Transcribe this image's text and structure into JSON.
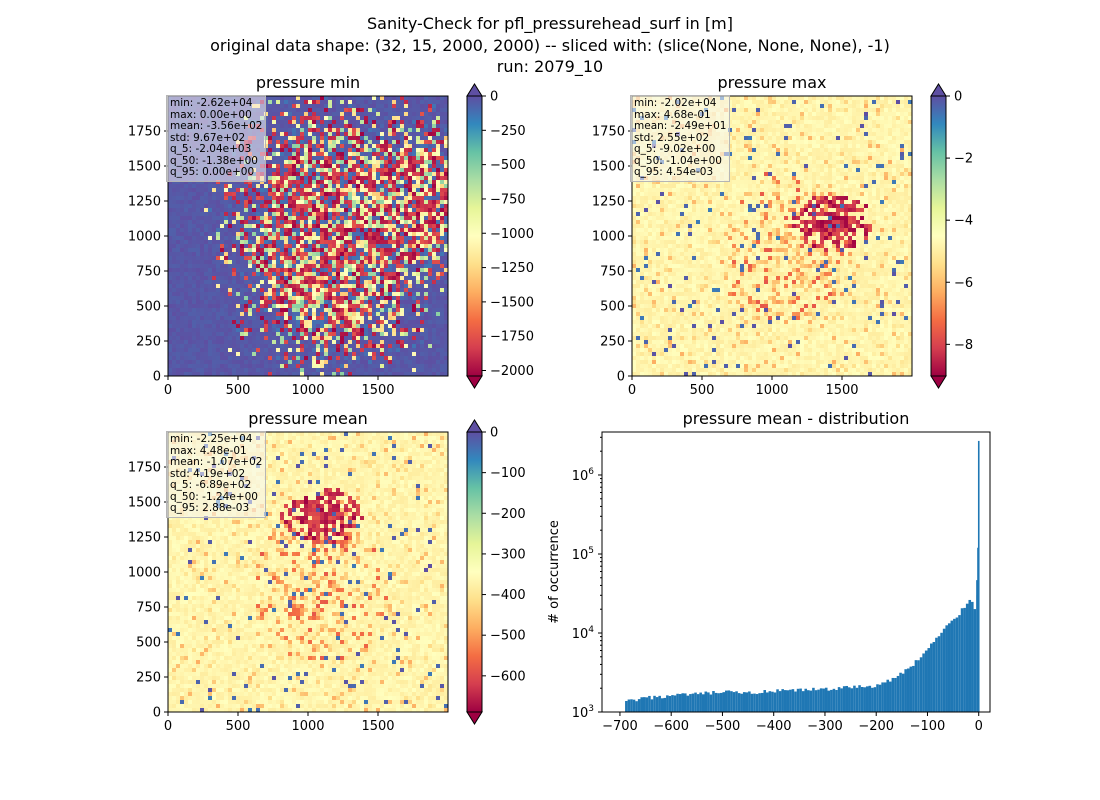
{
  "suptitle": {
    "line1": "Sanity-Check for pfl_pressurehead_surf in [m]",
    "line2": "original data shape: (32, 15, 2000, 2000) -- sliced with: (slice(None, None, None), -1)",
    "line3": "run: 2079_10"
  },
  "chart_data": [
    {
      "type": "heatmap",
      "title": "pressure min",
      "colormap": "Spectral",
      "x_ticks": [
        0,
        500,
        1000,
        1500
      ],
      "y_ticks": [
        0,
        250,
        500,
        750,
        1000,
        1250,
        1500,
        1750
      ],
      "xlim": [
        0,
        2000
      ],
      "ylim": [
        0,
        2000
      ],
      "colorbar_ticks": [
        0,
        -250,
        -500,
        -750,
        -1000,
        -1250,
        -1500,
        -1750,
        -2000
      ],
      "colorbar_range": [
        -2040,
        0
      ],
      "colorbar_extend": "both",
      "stats": [
        "min: -2.62e+04",
        "max: 0.00e+00",
        "mean: -3.56e+02",
        "std: 9.67e+02",
        "q_5: -2.04e+03",
        "q_50: -1.38e+00",
        "q_95: 0.00e+00"
      ]
    },
    {
      "type": "heatmap",
      "title": "pressure max",
      "colormap": "Spectral",
      "x_ticks": [
        0,
        500,
        1000,
        1500
      ],
      "y_ticks": [
        0,
        250,
        500,
        750,
        1000,
        1250,
        1500,
        1750
      ],
      "xlim": [
        0,
        2000
      ],
      "ylim": [
        0,
        2000
      ],
      "colorbar_ticks": [
        0,
        -2,
        -4,
        -6,
        -8
      ],
      "colorbar_range": [
        -9.02,
        0
      ],
      "colorbar_extend": "both",
      "stats": [
        "min: -2.02e+04",
        "max: 4.68e-01",
        "mean: -2.49e+01",
        "std: 2.55e+02",
        "q_5: -9.02e+00",
        "q_50: -1.04e+00",
        "q_95: 4.54e-03"
      ]
    },
    {
      "type": "heatmap",
      "title": "pressure mean",
      "colormap": "Spectral",
      "x_ticks": [
        0,
        500,
        1000,
        1500
      ],
      "y_ticks": [
        0,
        250,
        500,
        750,
        1000,
        1250,
        1500,
        1750
      ],
      "xlim": [
        0,
        2000
      ],
      "ylim": [
        0,
        2000
      ],
      "colorbar_ticks": [
        0,
        -100,
        -200,
        -300,
        -400,
        -500,
        -600
      ],
      "colorbar_range": [
        -689,
        0
      ],
      "colorbar_extend": "both",
      "stats": [
        "min: -2.25e+04",
        "max: 4.48e-01",
        "mean: -1.07e+02",
        "std: 4.19e+02",
        "q_5: -6.89e+02",
        "q_50: -1.24e+00",
        "q_95: 2.88e-03"
      ]
    },
    {
      "type": "bar",
      "title": "pressure mean - distribution",
      "ylabel": "# of occurrence",
      "yscale": "log",
      "ylim": [
        1000,
        3500000
      ],
      "xlim": [
        -735,
        22
      ],
      "x_ticks": [
        -700,
        -600,
        -500,
        -400,
        -300,
        -200,
        -100,
        0
      ],
      "y_ticks": [
        {
          "value": 1000,
          "base": "10",
          "exp": "3"
        },
        {
          "value": 10000,
          "base": "10",
          "exp": "4"
        },
        {
          "value": 100000,
          "base": "10",
          "exp": "5"
        },
        {
          "value": 1000000,
          "base": "10",
          "exp": "6"
        }
      ],
      "bar_color": "#1f77b4",
      "bins": {
        "x": [
          -690,
          -640,
          -600,
          -550,
          -500,
          -450,
          -400,
          -350,
          -300,
          -250,
          -200,
          -180,
          -160,
          -150,
          -140,
          -130,
          -120,
          -110,
          -100,
          -90,
          -80,
          -70,
          -60,
          -50,
          -40,
          -30,
          -20,
          -15,
          -10,
          -6,
          -3,
          -1.5,
          0
        ],
        "values": [
          1350,
          1520,
          1600,
          1680,
          1780,
          1740,
          1820,
          1880,
          1950,
          2050,
          2150,
          2400,
          2800,
          3100,
          3400,
          3900,
          4500,
          5200,
          6200,
          7400,
          8800,
          10500,
          12500,
          14500,
          17000,
          20500,
          25000,
          26500,
          23000,
          20000,
          30000,
          120000,
          2700000
        ]
      }
    }
  ]
}
